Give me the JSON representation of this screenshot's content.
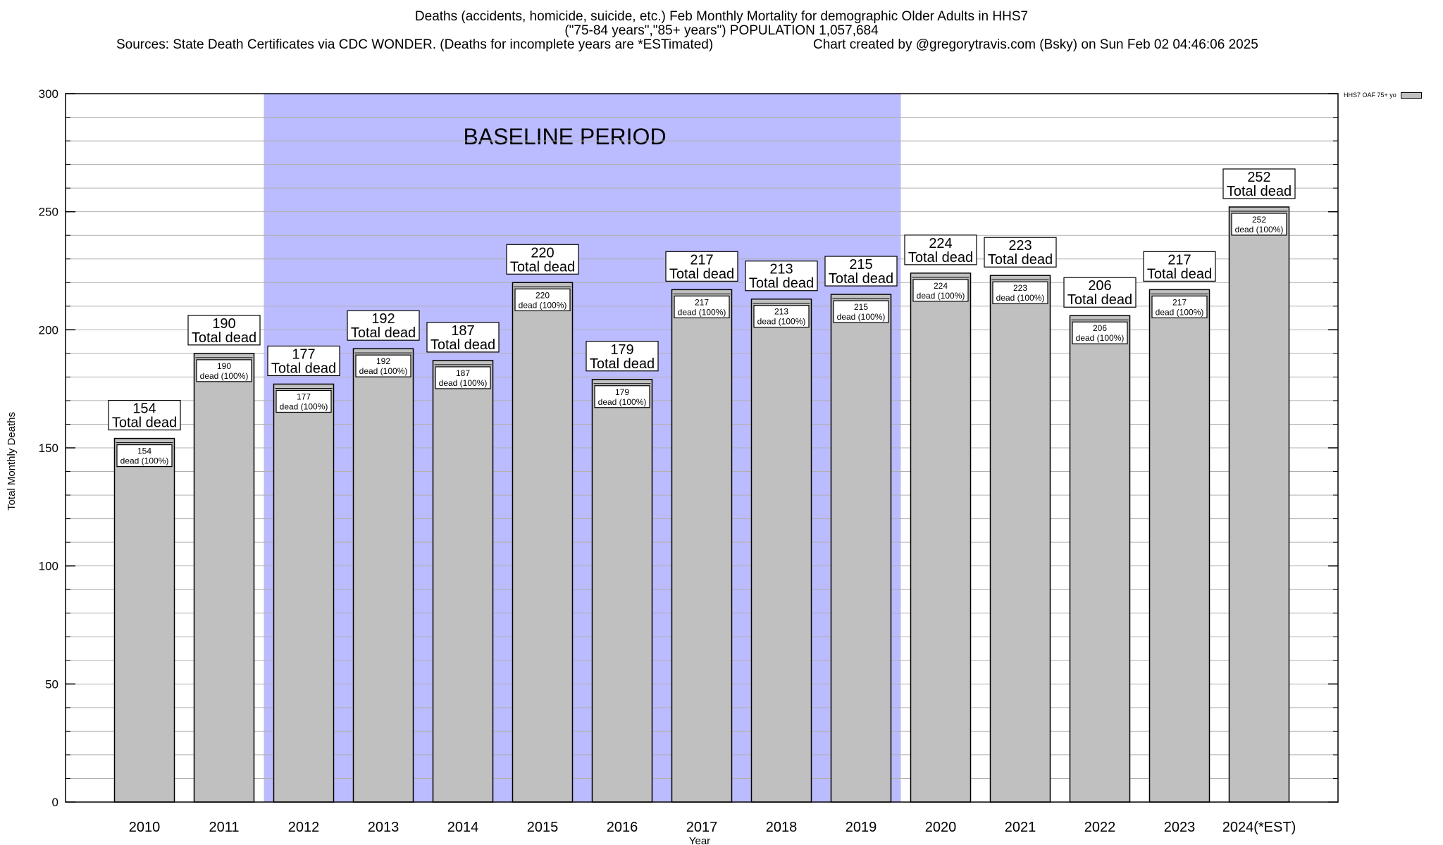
{
  "header": {
    "title": "Deaths (accidents, homicide, suicide, etc.) Feb Monthly Mortality for demographic Older Adults in HHS7",
    "subtitle": "(\"75-84 years\",\"85+ years\") POPULATION 1,057,684",
    "sources": "Sources: State Death Certificates via CDC WONDER. (Deaths for incomplete years are *ESTimated)",
    "credit": "Chart created by @gregorytravis.com (Bsky) on Sun Feb 02 04:46:06 2025"
  },
  "legend": {
    "label": "HHS7 OAF 75+ yo"
  },
  "chart_data": {
    "type": "bar",
    "categories": [
      "2010",
      "2011",
      "2012",
      "2013",
      "2014",
      "2015",
      "2016",
      "2017",
      "2018",
      "2019",
      "2020",
      "2021",
      "2022",
      "2023",
      "2024(*EST)"
    ],
    "series": [
      {
        "name": "HHS7 OAF 75+ yo",
        "values": [
          154,
          190,
          177,
          192,
          187,
          220,
          179,
          217,
          213,
          215,
          224,
          223,
          206,
          217,
          252
        ]
      }
    ],
    "xlabel": "Year",
    "ylabel": "Total Monthly Deaths",
    "ylim": [
      0,
      300
    ],
    "yticks": [
      0,
      50,
      100,
      150,
      200,
      250,
      300
    ],
    "grid": true,
    "legend_position": "top-right",
    "bar_color": "#c0c0c0",
    "label_top_suffix": "Total dead",
    "label_inner_suffix": "dead (100%)",
    "shaded_region": {
      "label": "BASELINE PERIOD",
      "from": "2012",
      "to": "2019",
      "color": "#bbbbff"
    }
  }
}
